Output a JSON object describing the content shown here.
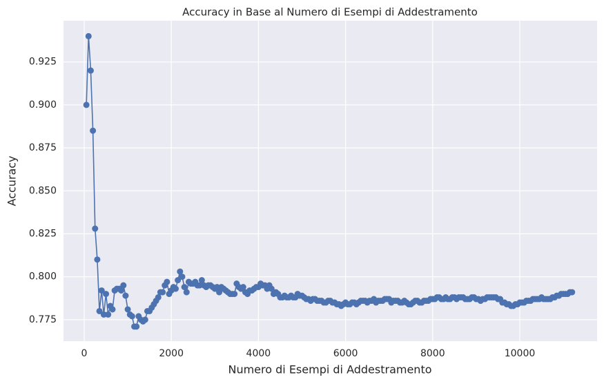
{
  "chart_data": {
    "type": "line",
    "title": "Accuracy in Base al Numero di Esempi di Addestramento",
    "xlabel": "Numero di Esempi di Addestramento",
    "ylabel": "Accuracy",
    "x": [
      50,
      100,
      150,
      200,
      250,
      300,
      350,
      400,
      450,
      500,
      550,
      600,
      650,
      700,
      750,
      800,
      850,
      900,
      950,
      1000,
      1050,
      1100,
      1150,
      1200,
      1250,
      1300,
      1350,
      1400,
      1450,
      1500,
      1550,
      1600,
      1650,
      1700,
      1750,
      1800,
      1850,
      1900,
      1950,
      2000,
      2050,
      2100,
      2150,
      2200,
      2250,
      2300,
      2350,
      2400,
      2450,
      2500,
      2550,
      2600,
      2650,
      2700,
      2750,
      2800,
      2850,
      2900,
      2950,
      3000,
      3050,
      3100,
      3150,
      3200,
      3250,
      3300,
      3350,
      3400,
      3450,
      3500,
      3550,
      3600,
      3650,
      3700,
      3750,
      3800,
      3850,
      3900,
      3950,
      4000,
      4050,
      4100,
      4150,
      4200,
      4250,
      4300,
      4350,
      4400,
      4450,
      4500,
      4550,
      4600,
      4650,
      4700,
      4750,
      4800,
      4850,
      4900,
      4950,
      5000,
      5050,
      5100,
      5150,
      5200,
      5250,
      5300,
      5350,
      5400,
      5450,
      5500,
      5550,
      5600,
      5650,
      5700,
      5750,
      5800,
      5850,
      5900,
      5950,
      6000,
      6050,
      6100,
      6150,
      6200,
      6250,
      6300,
      6350,
      6400,
      6450,
      6500,
      6550,
      6600,
      6650,
      6700,
      6750,
      6800,
      6850,
      6900,
      6950,
      7000,
      7050,
      7100,
      7150,
      7200,
      7250,
      7300,
      7350,
      7400,
      7450,
      7500,
      7550,
      7600,
      7650,
      7700,
      7750,
      7800,
      7850,
      7900,
      7950,
      8000,
      8050,
      8100,
      8150,
      8200,
      8250,
      8300,
      8350,
      8400,
      8450,
      8500,
      8550,
      8600,
      8650,
      8700,
      8750,
      8800,
      8850,
      8900,
      8950,
      9000,
      9050,
      9100,
      9150,
      9200,
      9250,
      9300,
      9350,
      9400,
      9450,
      9500,
      9550,
      9600,
      9650,
      9700,
      9750,
      9800,
      9850,
      9900,
      9950,
      10000,
      10050,
      10100,
      10150,
      10200,
      10250,
      10300,
      10350,
      10400,
      10450,
      10500,
      10550,
      10600,
      10650,
      10700,
      10750,
      10800,
      10850,
      10900,
      10950,
      11000,
      11050,
      11100,
      11150,
      11200
    ],
    "series": [
      {
        "color": "#4c72b0",
        "values": [
          0.9,
          0.94,
          0.92,
          0.885,
          0.828,
          0.81,
          0.78,
          0.792,
          0.778,
          0.79,
          0.778,
          0.783,
          0.781,
          0.792,
          0.793,
          0.793,
          0.792,
          0.795,
          0.789,
          0.781,
          0.778,
          0.777,
          0.771,
          0.771,
          0.777,
          0.775,
          0.774,
          0.775,
          0.78,
          0.78,
          0.782,
          0.784,
          0.786,
          0.788,
          0.791,
          0.791,
          0.795,
          0.797,
          0.79,
          0.792,
          0.794,
          0.793,
          0.798,
          0.803,
          0.8,
          0.794,
          0.791,
          0.797,
          0.796,
          0.796,
          0.797,
          0.795,
          0.795,
          0.798,
          0.795,
          0.794,
          0.795,
          0.795,
          0.794,
          0.793,
          0.794,
          0.791,
          0.794,
          0.793,
          0.792,
          0.791,
          0.79,
          0.79,
          0.79,
          0.796,
          0.794,
          0.793,
          0.794,
          0.791,
          0.79,
          0.792,
          0.792,
          0.793,
          0.794,
          0.794,
          0.796,
          0.795,
          0.795,
          0.793,
          0.795,
          0.793,
          0.79,
          0.791,
          0.79,
          0.788,
          0.788,
          0.789,
          0.788,
          0.788,
          0.789,
          0.788,
          0.788,
          0.79,
          0.789,
          0.789,
          0.788,
          0.787,
          0.787,
          0.786,
          0.787,
          0.787,
          0.786,
          0.786,
          0.786,
          0.785,
          0.785,
          0.786,
          0.786,
          0.785,
          0.785,
          0.784,
          0.784,
          0.783,
          0.784,
          0.785,
          0.784,
          0.784,
          0.785,
          0.785,
          0.784,
          0.785,
          0.786,
          0.786,
          0.786,
          0.785,
          0.786,
          0.786,
          0.787,
          0.785,
          0.786,
          0.786,
          0.786,
          0.787,
          0.787,
          0.787,
          0.785,
          0.786,
          0.786,
          0.786,
          0.785,
          0.785,
          0.786,
          0.785,
          0.784,
          0.784,
          0.785,
          0.786,
          0.786,
          0.785,
          0.785,
          0.786,
          0.786,
          0.786,
          0.787,
          0.787,
          0.787,
          0.788,
          0.788,
          0.787,
          0.787,
          0.788,
          0.787,
          0.787,
          0.788,
          0.788,
          0.787,
          0.788,
          0.788,
          0.788,
          0.787,
          0.787,
          0.787,
          0.788,
          0.788,
          0.787,
          0.787,
          0.786,
          0.787,
          0.787,
          0.788,
          0.788,
          0.788,
          0.788,
          0.788,
          0.787,
          0.787,
          0.785,
          0.785,
          0.784,
          0.784,
          0.783,
          0.783,
          0.784,
          0.784,
          0.785,
          0.785,
          0.785,
          0.786,
          0.786,
          0.786,
          0.787,
          0.787,
          0.787,
          0.787,
          0.788,
          0.787,
          0.787,
          0.787,
          0.787,
          0.788,
          0.788,
          0.789,
          0.789,
          0.79,
          0.79,
          0.79,
          0.79,
          0.791,
          0.791
        ]
      }
    ],
    "xlim": [
      -475,
      11775
    ],
    "ylim": [
      0.7625,
      0.949
    ],
    "xticks": [
      0,
      2000,
      4000,
      6000,
      8000,
      10000
    ],
    "yticks": [
      0.775,
      {
        "value": 0.8,
        "label": "0.800"
      },
      0.825,
      {
        "value": 0.85,
        "label": "0.850"
      },
      0.875,
      {
        "value": 0.9,
        "label": "0.900"
      },
      0.925
    ],
    "grid": true
  }
}
